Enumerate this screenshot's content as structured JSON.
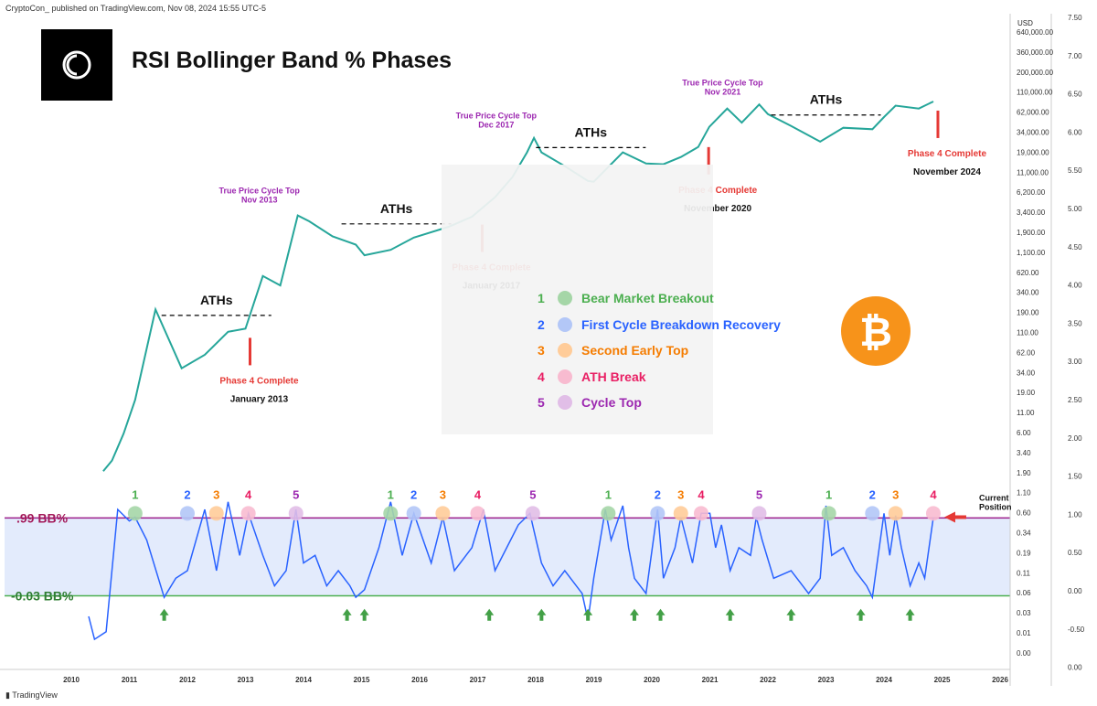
{
  "header": "CryptoCon_ published on TradingView.com, Nov 08, 2024 15:55 UTC-5",
  "title": "RSI Bollinger Band % Phases",
  "footer": "TradingView",
  "colors": {
    "p1": "#4caf50",
    "p2": "#2962ff",
    "p3": "#f57c00",
    "p4": "#e91e63",
    "p5": "#9c27b0",
    "arrow": "#e53935",
    "rsi": "#2962ff",
    "band": "#e3ebfc",
    "top_line": "#9c1f8c",
    "bottom_line": "#4caf50",
    "candle_up": "#26a69a",
    "candle_down": "#ef5350",
    "bitcoin": "#f7931a"
  },
  "legend": [
    {
      "num": "1",
      "label": "Bear Market Breakout",
      "color": "#a5d6a7",
      "text": "#4caf50"
    },
    {
      "num": "2",
      "label": "First Cycle Breakdown Recovery",
      "color": "#b3c7f7",
      "text": "#2962ff"
    },
    {
      "num": "3",
      "label": "Second Early Top",
      "color": "#ffcc99",
      "text": "#f57c00"
    },
    {
      "num": "4",
      "label": "ATH Break",
      "color": "#f8bbd0",
      "text": "#e91e63"
    },
    {
      "num": "5",
      "label": "Cycle Top",
      "color": "#e1bee7",
      "text": "#9c27b0"
    }
  ],
  "chart_data": {
    "type": "line",
    "x_ticks": [
      "2010",
      "2011",
      "2012",
      "2013",
      "2014",
      "2015",
      "2016",
      "2017",
      "2018",
      "2019",
      "2020",
      "2021",
      "2022",
      "2023",
      "2024",
      "2025",
      "2026"
    ],
    "price_axis": {
      "unit": "USD",
      "scale": "log",
      "ticks": [
        "640,000.00",
        "360,000.00",
        "200,000.00",
        "110,000.00",
        "62,000.00",
        "34,000.00",
        "19,000.00",
        "11,000.00",
        "6,200.00",
        "3,400.00",
        "1,900.00",
        "1,100.00",
        "620.00",
        "340.00",
        "190.00",
        "110.00",
        "62.00",
        "34.00",
        "19.00",
        "11.00",
        "6.00",
        "3.40",
        "1.90",
        "1.10",
        "0.60",
        "0.34",
        "0.19",
        "0.11",
        "0.06",
        "0.03",
        "0.01",
        "0.00"
      ]
    },
    "bbp_axis_ticks": [
      "7.50",
      "7.00",
      "6.50",
      "6.00",
      "5.50",
      "5.00",
      "4.50",
      "4.00",
      "3.50",
      "3.00",
      "2.50",
      "2.00",
      "1.50",
      "1.00",
      "0.50",
      "0.00",
      "-0.50",
      "0.00"
    ],
    "price_series": {
      "name": "BTC price",
      "x": [
        2010.55,
        2010.7,
        2010.9,
        2011.1,
        2011.45,
        2011.9,
        2012.3,
        2012.7,
        2013.0,
        2013.3,
        2013.6,
        2013.9,
        2014.1,
        2014.5,
        2014.9,
        2015.05,
        2015.5,
        2015.9,
        2016.5,
        2016.9,
        2017.3,
        2017.6,
        2017.85,
        2017.97,
        2018.1,
        2018.5,
        2018.9,
        2019.0,
        2019.5,
        2019.9,
        2020.2,
        2020.5,
        2020.8,
        2020.99,
        2021.3,
        2021.55,
        2021.85,
        2022.0,
        2022.4,
        2022.9,
        2023.3,
        2023.8,
        2024.0,
        2024.2,
        2024.6,
        2024.85
      ],
      "y": [
        0.06,
        0.09,
        0.25,
        0.9,
        28,
        3,
        5,
        12,
        13.5,
        100,
        70,
        1000,
        800,
        450,
        330,
        220,
        270,
        430,
        650,
        950,
        2000,
        4300,
        11000,
        19000,
        11000,
        6500,
        3700,
        3600,
        11000,
        7200,
        7000,
        9200,
        13500,
        29000,
        58000,
        34000,
        68000,
        47000,
        30000,
        16500,
        28000,
        26500,
        42000,
        65000,
        58000,
        76000
      ]
    },
    "bbp_series": {
      "name": "RSI BB%",
      "x": [
        2010.3,
        2010.4,
        2010.6,
        2010.8,
        2011.0,
        2011.1,
        2011.3,
        2011.6,
        2011.8,
        2012.0,
        2012.3,
        2012.5,
        2012.7,
        2012.9,
        2013.05,
        2013.3,
        2013.5,
        2013.7,
        2013.87,
        2014.0,
        2014.2,
        2014.4,
        2014.6,
        2014.8,
        2014.9,
        2015.05,
        2015.3,
        2015.5,
        2015.7,
        2015.9,
        2016.2,
        2016.4,
        2016.6,
        2016.9,
        2017.1,
        2017.3,
        2017.5,
        2017.7,
        2017.9,
        2018.1,
        2018.3,
        2018.5,
        2018.8,
        2018.9,
        2019.0,
        2019.2,
        2019.3,
        2019.5,
        2019.6,
        2019.7,
        2019.9,
        2020.1,
        2020.2,
        2020.4,
        2020.5,
        2020.7,
        2020.85,
        2021.0,
        2021.1,
        2021.2,
        2021.35,
        2021.5,
        2021.7,
        2021.8,
        2021.9,
        2022.1,
        2022.4,
        2022.7,
        2022.9,
        2023.0,
        2023.1,
        2023.3,
        2023.5,
        2023.7,
        2023.8,
        2024.0,
        2024.1,
        2024.2,
        2024.3,
        2024.45,
        2024.6,
        2024.7,
        2024.85
      ],
      "y": [
        -0.3,
        -0.6,
        -0.5,
        1.1,
        0.95,
        1.0,
        0.7,
        -0.05,
        0.2,
        0.3,
        1.1,
        0.3,
        1.2,
        0.5,
        1.05,
        0.5,
        0.1,
        0.3,
        1.1,
        0.4,
        0.5,
        0.1,
        0.3,
        0.1,
        -0.05,
        0.05,
        0.6,
        1.2,
        0.5,
        1.05,
        0.4,
        1.0,
        0.3,
        0.6,
        1.1,
        0.3,
        0.6,
        0.9,
        1.05,
        0.4,
        0.1,
        0.3,
        0.0,
        -0.35,
        0.2,
        1.1,
        0.7,
        1.15,
        0.6,
        0.2,
        0.0,
        1.1,
        0.2,
        0.6,
        1.0,
        0.4,
        1.05,
        1.05,
        0.6,
        0.9,
        0.3,
        0.6,
        0.5,
        1.0,
        0.7,
        0.2,
        0.3,
        0.0,
        0.2,
        1.15,
        0.5,
        0.6,
        0.3,
        0.1,
        -0.05,
        1.05,
        0.5,
        1.02,
        0.6,
        0.1,
        0.4,
        0.2,
        1.0
      ]
    },
    "levels": [
      {
        "label": ".99 BB%",
        "value": 0.99
      },
      {
        "label": "-0.03 BB%",
        "value": -0.03
      }
    ],
    "price_annotations": [
      {
        "text": "ATHs",
        "date": 2012.5,
        "price": 34
      },
      {
        "text": "ATHs",
        "date": 2015.6,
        "price": 1100
      },
      {
        "text": "ATHs",
        "date": 2018.95,
        "price": 20000
      },
      {
        "text": "ATHs",
        "date": 2023.0,
        "price": 69000
      },
      {
        "text": "True Price Cycle Top",
        "sub": "Nov 2013",
        "date": 2013.87,
        "price": 1150
      },
      {
        "text": "True Price Cycle Top",
        "sub": "Dec 2017",
        "date": 2017.95,
        "price": 20000
      },
      {
        "text": "True Price Cycle Top",
        "sub": "Nov 2021",
        "date": 2021.85,
        "price": 69000
      },
      {
        "text": "Phase 4 Complete",
        "sub": "January 2013",
        "date": 2013.0,
        "price": 13.5
      },
      {
        "text": "Phase 4 Complete",
        "sub": "January 2017",
        "date": 2017.0,
        "price": 1000
      },
      {
        "text": "Phase 4 Complete",
        "sub": "November 2020",
        "date": 2020.9,
        "price": 19000
      },
      {
        "text": "Phase 4 Complete",
        "sub": "November 2024",
        "date": 2024.85,
        "price": 76000
      }
    ],
    "phase_markers_bbp": [
      {
        "phase": "1",
        "date": 2011.1
      },
      {
        "phase": "2",
        "date": 2012.0
      },
      {
        "phase": "3",
        "date": 2012.5
      },
      {
        "phase": "4",
        "date": 2013.05
      },
      {
        "phase": "5",
        "date": 2013.87
      },
      {
        "phase": "1",
        "date": 2015.5
      },
      {
        "phase": "2",
        "date": 2015.9
      },
      {
        "phase": "3",
        "date": 2016.4
      },
      {
        "phase": "4",
        "date": 2017.0
      },
      {
        "phase": "5",
        "date": 2017.95
      },
      {
        "phase": "1",
        "date": 2019.25
      },
      {
        "phase": "2",
        "date": 2020.1
      },
      {
        "phase": "3",
        "date": 2020.5
      },
      {
        "phase": "4",
        "date": 2020.85
      },
      {
        "phase": "5",
        "date": 2021.85
      },
      {
        "phase": "1",
        "date": 2023.05
      },
      {
        "phase": "2",
        "date": 2023.8
      },
      {
        "phase": "3",
        "date": 2024.2
      },
      {
        "phase": "4",
        "date": 2024.85
      }
    ],
    "green_arrows_dates": [
      2011.6,
      2014.75,
      2015.05,
      2017.2,
      2018.1,
      2018.9,
      2019.7,
      2020.15,
      2021.35,
      2022.4,
      2023.6,
      2024.45
    ],
    "current_position": {
      "text": "Current",
      "sub": "Position",
      "date": 2024.85,
      "value": 1.0
    }
  }
}
